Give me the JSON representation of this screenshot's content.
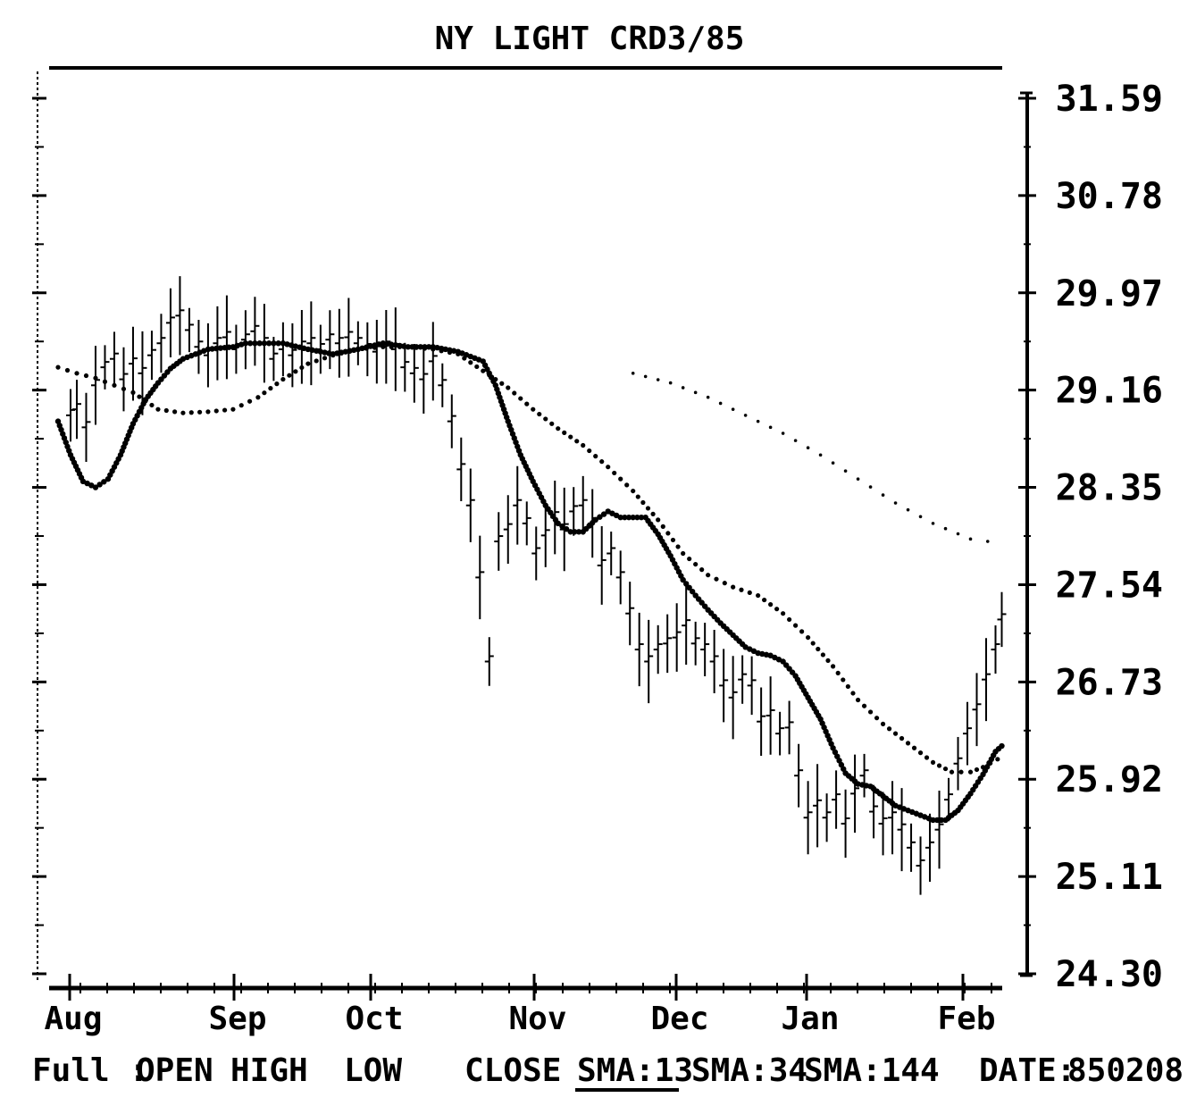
{
  "chart_data": {
    "type": "line",
    "title": "NY LIGHT CRD3/85",
    "y_ticks": [
      "31.59",
      "30.78",
      "29.97",
      "29.16",
      "28.35",
      "27.54",
      "26.73",
      "25.92",
      "25.11",
      "24.30"
    ],
    "ylim": [
      24.3,
      31.59
    ],
    "x_ticks": [
      "Aug",
      "Sep",
      "Oct",
      "Nov",
      "Dec",
      "Jan",
      "Feb"
    ],
    "grid": false,
    "series": [
      {
        "name": "SMA:13",
        "style": "solid-dotted",
        "points": [
          [
            0.0,
            28.9
          ],
          [
            0.2,
            28.62
          ],
          [
            0.4,
            28.4
          ],
          [
            0.6,
            28.35
          ],
          [
            0.8,
            28.42
          ],
          [
            1.0,
            28.62
          ],
          [
            1.2,
            28.88
          ],
          [
            1.4,
            29.08
          ],
          [
            1.6,
            29.22
          ],
          [
            1.8,
            29.34
          ],
          [
            2.0,
            29.42
          ],
          [
            2.4,
            29.5
          ],
          [
            2.8,
            29.52
          ],
          [
            3.0,
            29.55
          ],
          [
            3.6,
            29.55
          ],
          [
            4.0,
            29.5
          ],
          [
            4.4,
            29.46
          ],
          [
            4.8,
            29.5
          ],
          [
            5.2,
            29.55
          ],
          [
            5.6,
            29.52
          ],
          [
            6.0,
            29.52
          ],
          [
            6.4,
            29.48
          ],
          [
            6.8,
            29.4
          ],
          [
            7.0,
            29.2
          ],
          [
            7.2,
            28.9
          ],
          [
            7.4,
            28.62
          ],
          [
            7.6,
            28.4
          ],
          [
            7.8,
            28.2
          ],
          [
            8.0,
            28.05
          ],
          [
            8.2,
            27.98
          ],
          [
            8.4,
            27.98
          ],
          [
            8.6,
            28.08
          ],
          [
            8.8,
            28.15
          ],
          [
            9.0,
            28.1
          ],
          [
            9.4,
            28.1
          ],
          [
            9.6,
            27.96
          ],
          [
            9.8,
            27.78
          ],
          [
            10.0,
            27.58
          ],
          [
            10.2,
            27.45
          ],
          [
            10.4,
            27.33
          ],
          [
            10.6,
            27.22
          ],
          [
            10.8,
            27.12
          ],
          [
            11.0,
            27.02
          ],
          [
            11.2,
            26.97
          ],
          [
            11.4,
            26.95
          ],
          [
            11.6,
            26.9
          ],
          [
            11.8,
            26.78
          ],
          [
            12.0,
            26.6
          ],
          [
            12.2,
            26.42
          ],
          [
            12.4,
            26.18
          ],
          [
            12.6,
            25.97
          ],
          [
            12.8,
            25.88
          ],
          [
            13.0,
            25.86
          ],
          [
            13.2,
            25.78
          ],
          [
            13.4,
            25.7
          ],
          [
            13.6,
            25.66
          ],
          [
            13.8,
            25.62
          ],
          [
            14.0,
            25.58
          ],
          [
            14.2,
            25.58
          ],
          [
            14.4,
            25.66
          ],
          [
            14.6,
            25.8
          ],
          [
            14.8,
            25.96
          ],
          [
            15.0,
            26.15
          ],
          [
            15.15,
            26.22
          ]
        ]
      },
      {
        "name": "SMA:34",
        "style": "dotted",
        "points": [
          [
            0.0,
            29.35
          ],
          [
            0.3,
            29.3
          ],
          [
            0.6,
            29.26
          ],
          [
            0.9,
            29.2
          ],
          [
            1.2,
            29.14
          ],
          [
            1.6,
            29.0
          ],
          [
            2.0,
            28.97
          ],
          [
            2.4,
            28.98
          ],
          [
            2.8,
            29.0
          ],
          [
            3.2,
            29.1
          ],
          [
            3.6,
            29.25
          ],
          [
            4.0,
            29.38
          ],
          [
            4.4,
            29.45
          ],
          [
            4.8,
            29.5
          ],
          [
            5.2,
            29.52
          ],
          [
            5.6,
            29.52
          ],
          [
            6.0,
            29.5
          ],
          [
            6.4,
            29.46
          ],
          [
            6.8,
            29.32
          ],
          [
            7.2,
            29.18
          ],
          [
            7.6,
            29.0
          ],
          [
            8.0,
            28.84
          ],
          [
            8.4,
            28.7
          ],
          [
            8.8,
            28.52
          ],
          [
            9.2,
            28.32
          ],
          [
            9.6,
            28.08
          ],
          [
            10.0,
            27.8
          ],
          [
            10.4,
            27.62
          ],
          [
            10.8,
            27.52
          ],
          [
            11.2,
            27.45
          ],
          [
            11.6,
            27.3
          ],
          [
            12.0,
            27.1
          ],
          [
            12.4,
            26.86
          ],
          [
            12.8,
            26.58
          ],
          [
            13.2,
            26.38
          ],
          [
            13.6,
            26.22
          ],
          [
            14.0,
            26.06
          ],
          [
            14.3,
            25.98
          ],
          [
            14.6,
            25.98
          ],
          [
            14.8,
            26.02
          ],
          [
            15.15,
            26.12
          ]
        ]
      },
      {
        "name": "SMA:144",
        "style": "sparse-dotted",
        "points": [
          [
            9.2,
            29.3
          ],
          [
            9.8,
            29.22
          ],
          [
            10.4,
            29.1
          ],
          [
            11.0,
            28.95
          ],
          [
            11.6,
            28.8
          ],
          [
            12.2,
            28.62
          ],
          [
            12.8,
            28.42
          ],
          [
            13.4,
            28.22
          ],
          [
            14.0,
            28.05
          ],
          [
            14.6,
            27.92
          ],
          [
            15.15,
            27.88
          ]
        ]
      },
      {
        "name": "CLOSE",
        "style": "bars",
        "points": [
          [
            0.2,
            28.95
          ],
          [
            0.3,
            29.0
          ],
          [
            0.45,
            28.85
          ],
          [
            0.6,
            29.2
          ],
          [
            0.75,
            29.35
          ],
          [
            0.9,
            29.42
          ],
          [
            1.05,
            29.25
          ],
          [
            1.2,
            29.38
          ],
          [
            1.35,
            29.3
          ],
          [
            1.5,
            29.45
          ],
          [
            1.65,
            29.55
          ],
          [
            1.8,
            29.72
          ],
          [
            1.95,
            29.78
          ],
          [
            2.1,
            29.66
          ],
          [
            2.25,
            29.52
          ],
          [
            2.4,
            29.45
          ],
          [
            2.55,
            29.55
          ],
          [
            2.7,
            29.6
          ],
          [
            2.85,
            29.5
          ],
          [
            3.0,
            29.58
          ],
          [
            3.15,
            29.65
          ],
          [
            3.3,
            29.55
          ],
          [
            3.45,
            29.42
          ],
          [
            3.6,
            29.5
          ],
          [
            3.75,
            29.45
          ],
          [
            3.9,
            29.52
          ],
          [
            4.05,
            29.55
          ],
          [
            4.2,
            29.5
          ],
          [
            4.35,
            29.58
          ],
          [
            4.5,
            29.55
          ],
          [
            4.65,
            29.6
          ],
          [
            4.8,
            29.55
          ],
          [
            4.95,
            29.5
          ],
          [
            5.1,
            29.48
          ],
          [
            5.25,
            29.52
          ],
          [
            5.4,
            29.5
          ],
          [
            5.55,
            29.35
          ],
          [
            5.7,
            29.3
          ],
          [
            5.85,
            29.25
          ],
          [
            6.0,
            29.4
          ],
          [
            6.15,
            29.2
          ],
          [
            6.3,
            28.9
          ],
          [
            6.45,
            28.5
          ],
          [
            6.6,
            28.2
          ],
          [
            6.75,
            27.6
          ],
          [
            6.9,
            26.9
          ],
          [
            7.05,
            27.9
          ],
          [
            7.2,
            28.0
          ],
          [
            7.35,
            28.2
          ],
          [
            7.5,
            28.05
          ],
          [
            7.65,
            27.8
          ],
          [
            7.8,
            27.95
          ],
          [
            7.95,
            28.1
          ],
          [
            8.1,
            28.0
          ],
          [
            8.25,
            28.15
          ],
          [
            8.4,
            28.2
          ],
          [
            8.55,
            28.05
          ],
          [
            8.7,
            27.7
          ],
          [
            8.85,
            27.8
          ],
          [
            9.0,
            27.6
          ],
          [
            9.15,
            27.3
          ],
          [
            9.3,
            27.0
          ],
          [
            9.45,
            26.9
          ],
          [
            9.6,
            27.0
          ],
          [
            9.75,
            27.05
          ],
          [
            9.9,
            27.1
          ],
          [
            10.05,
            27.2
          ],
          [
            10.2,
            27.05
          ],
          [
            10.35,
            27.0
          ],
          [
            10.5,
            26.9
          ],
          [
            10.65,
            26.7
          ],
          [
            10.8,
            26.6
          ],
          [
            10.95,
            26.75
          ],
          [
            11.1,
            26.7
          ],
          [
            11.25,
            26.4
          ],
          [
            11.4,
            26.45
          ],
          [
            11.55,
            26.3
          ],
          [
            11.7,
            26.35
          ],
          [
            11.85,
            25.95
          ],
          [
            12.0,
            25.6
          ],
          [
            12.15,
            25.7
          ],
          [
            12.3,
            25.6
          ],
          [
            12.45,
            25.75
          ],
          [
            12.6,
            25.55
          ],
          [
            12.75,
            25.8
          ],
          [
            12.9,
            25.95
          ],
          [
            13.05,
            25.65
          ],
          [
            13.2,
            25.55
          ],
          [
            13.35,
            25.6
          ],
          [
            13.5,
            25.5
          ],
          [
            13.65,
            25.35
          ],
          [
            13.8,
            25.2
          ],
          [
            13.95,
            25.35
          ],
          [
            14.1,
            25.5
          ],
          [
            14.25,
            25.75
          ],
          [
            14.4,
            26.05
          ],
          [
            14.55,
            26.3
          ],
          [
            14.7,
            26.5
          ],
          [
            14.85,
            26.75
          ],
          [
            15.0,
            27.0
          ],
          [
            15.1,
            27.25
          ]
        ]
      }
    ]
  },
  "status_bar": {
    "prefix": "Full :",
    "items": [
      "OPEN",
      "HIGH",
      "LOW",
      "CLOSE",
      "SMA:13",
      "SMA:34",
      "SMA:144"
    ],
    "date_label": "DATE:",
    "date_value": "850208"
  }
}
